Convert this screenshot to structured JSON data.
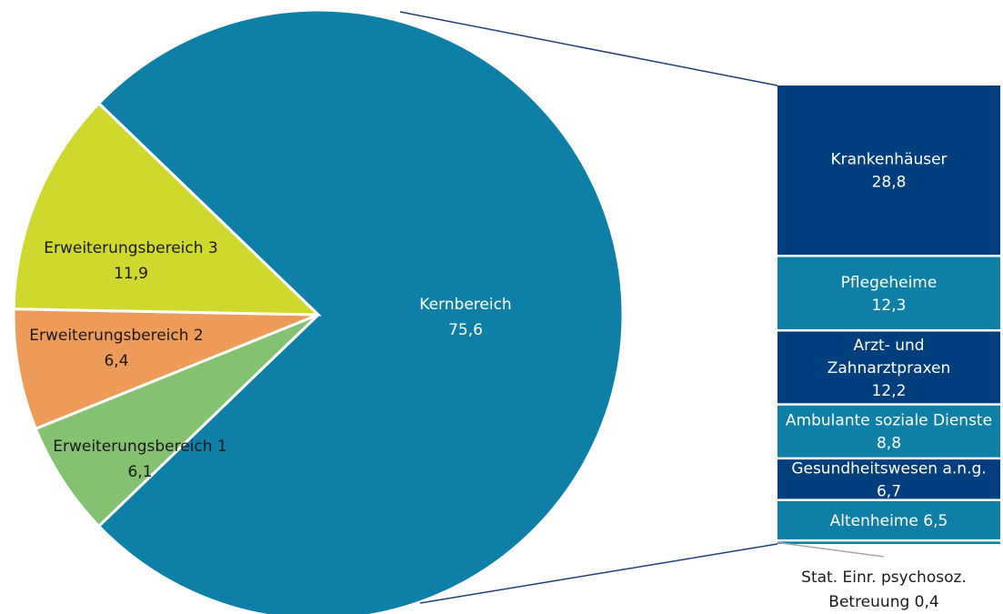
{
  "chart_data": {
    "type": "bar-of-pie",
    "title": "",
    "pie": {
      "slices": [
        {
          "label": "Kernbereich",
          "value_label": "75,6",
          "value": 75.6,
          "color": "#0e7fa6",
          "text_color": "#ffffff"
        },
        {
          "label": "Erweiterungsbereich 1",
          "value_label": "6,1",
          "value": 6.1,
          "color": "#84c271",
          "text_color": "#1a1a1a"
        },
        {
          "label": "Erweiterungsbereich 2",
          "value_label": "6,4",
          "value": 6.4,
          "color": "#ee9a58",
          "text_color": "#1a1a1a"
        },
        {
          "label": "Erweiterungsbereich 3",
          "value_label": "11,9",
          "value": 11.9,
          "color": "#cfd82d",
          "text_color": "#1a1a1a"
        }
      ]
    },
    "breakdown": {
      "of": "Kernbereich",
      "segments": [
        {
          "label_lines": [
            "Krankenhäuser",
            "28,8"
          ],
          "value": 28.8,
          "color": "#003e7e"
        },
        {
          "label_lines": [
            "Pflegeheime",
            "12,3"
          ],
          "value": 12.3,
          "color": "#0e7fa6"
        },
        {
          "label_lines": [
            "Arzt- und",
            "Zahnarztpraxen",
            "12,2"
          ],
          "value": 12.2,
          "color": "#003e7e"
        },
        {
          "label_lines": [
            "Ambulante soziale Dienste",
            "8,8"
          ],
          "value": 8.8,
          "color": "#0e7fa6"
        },
        {
          "label_lines": [
            "Gesundheitswesen a.n.g.",
            "6,7"
          ],
          "value": 6.7,
          "color": "#003e7e"
        },
        {
          "label_lines": [
            "Altenheime 6,5"
          ],
          "value": 6.5,
          "color": "#0e7fa6"
        },
        {
          "label_lines": [
            "Stat. Einr. psychosoz.",
            "Betreuung 0,4"
          ],
          "value": 0.4,
          "color": "#0e7fa6",
          "callout": true
        }
      ]
    },
    "connector_color": "#1f3f7a",
    "callout_line_color": "#a6a6a6"
  }
}
